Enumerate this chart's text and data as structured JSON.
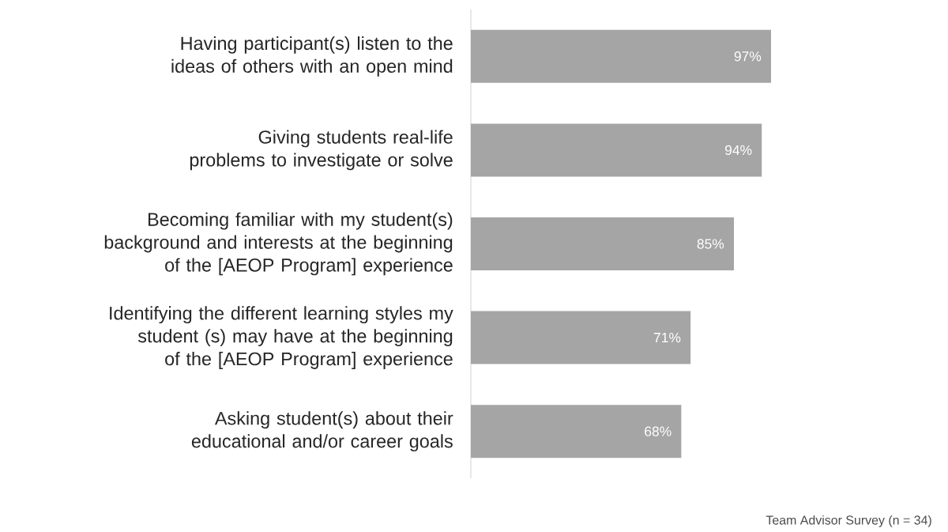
{
  "chart_data": {
    "type": "bar",
    "orientation": "horizontal",
    "categories": [
      "Having participant(s) listen to the ideas of others with an open mind",
      "Giving students real-life problems to investigate or solve",
      "Becoming familiar with my student(s) background and interests at the beginning of the [AEOP Program] experience",
      "Identifying the different learning styles my student (s) may have at the beginning of the [AEOP Program] experience",
      "Asking student(s) about their educational and/or career goals"
    ],
    "values": [
      97,
      94,
      85,
      71,
      68
    ],
    "value_labels": [
      "97%",
      "94%",
      "85%",
      "71%",
      "68%"
    ],
    "color": "#a5a5a5",
    "tick_labels": "y",
    "annotations": [
      "Team Advisor Survey (n = 34)"
    ]
  }
}
